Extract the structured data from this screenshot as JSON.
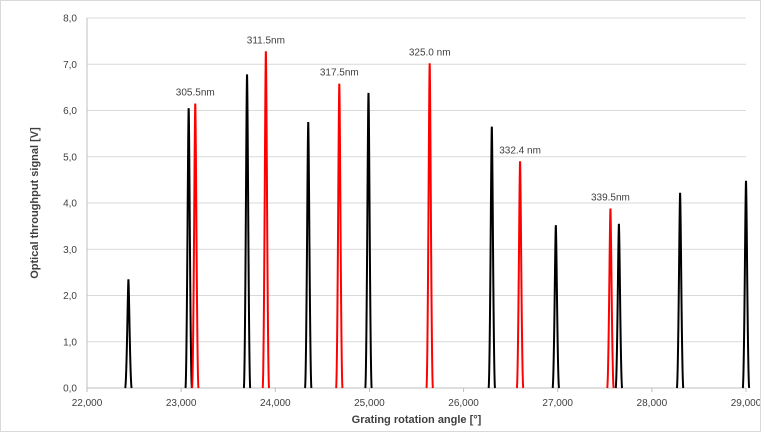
{
  "chart_data": {
    "type": "line",
    "xlabel": "Grating rotation angle [°]",
    "ylabel": "Optical throughput signal [V]",
    "xlim": [
      22000,
      29000
    ],
    "ylim": [
      0,
      8
    ],
    "x_ticks": [
      "22,000",
      "23,000",
      "24,000",
      "25,000",
      "26,000",
      "27,000",
      "28,000",
      "29,000"
    ],
    "y_ticks": [
      "0,0",
      "1,0",
      "2,0",
      "3,0",
      "4,0",
      "5,0",
      "6,0",
      "7,0",
      "8,0"
    ],
    "grid": "horizontal",
    "colors": {
      "black": "#000000",
      "red": "#ff0000",
      "grid": "#d9d9d9",
      "axis": "#bfbfbf"
    },
    "series": [
      {
        "color": "black",
        "peaks": [
          {
            "x": 22440,
            "y": 2.35
          },
          {
            "x": 23080,
            "y": 6.05
          },
          {
            "x": 23700,
            "y": 6.78
          },
          {
            "x": 24350,
            "y": 5.75
          },
          {
            "x": 24990,
            "y": 6.38
          },
          {
            "x": 26300,
            "y": 5.65
          },
          {
            "x": 26980,
            "y": 3.52
          },
          {
            "x": 27650,
            "y": 3.55
          },
          {
            "x": 28300,
            "y": 4.22
          },
          {
            "x": 29000,
            "y": 4.48
          }
        ]
      },
      {
        "color": "red",
        "peaks": [
          {
            "x": 23150,
            "y": 6.15,
            "label": "305.5nm"
          },
          {
            "x": 23900,
            "y": 7.28,
            "label": "311.5nm"
          },
          {
            "x": 24680,
            "y": 6.58,
            "label": "317.5nm"
          },
          {
            "x": 25640,
            "y": 7.02,
            "label": "325.0 nm"
          },
          {
            "x": 26600,
            "y": 4.9,
            "label": "332.4 nm"
          },
          {
            "x": 27560,
            "y": 3.88,
            "label": "339.5nm"
          }
        ]
      }
    ]
  }
}
